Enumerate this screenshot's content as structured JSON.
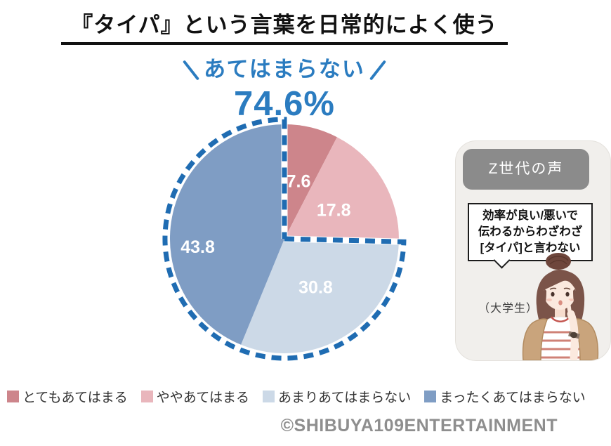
{
  "title": "『タイパ』という言葉を日常的によく使う",
  "highlight": {
    "label": "あてはまらない",
    "value": "74.6%"
  },
  "chart_data": {
    "type": "pie",
    "title": "『タイパ』という言葉を日常的によく使う",
    "start_angle_deg": 0,
    "direction": "clockwise",
    "unit": "%",
    "slices": [
      {
        "label": "とてもあてはまる",
        "value": 7.6,
        "color": "#cd858b"
      },
      {
        "label": "ややあてはまる",
        "value": 17.8,
        "color": "#e9b6bc"
      },
      {
        "label": "あまりあてはまらない",
        "value": 30.8,
        "color": "#ccd9e7"
      },
      {
        "label": "まったくあてはまらない",
        "value": 43.8,
        "color": "#7f9dc4"
      }
    ],
    "highlight_group": {
      "label": "あてはまらない",
      "value": 74.6,
      "covers": [
        "あまりあてはまらない",
        "まったくあてはまらない"
      ],
      "outline_color": "#1f6cb2",
      "outline_style": "dashed"
    },
    "legend_position": "bottom"
  },
  "voice_panel": {
    "header": "Z世代の声",
    "quote_lines": [
      "効率が良い/悪いで",
      "伝わるからわざわざ",
      "[タイパ]と言わない"
    ],
    "attribution": "（大学生）"
  },
  "copyright": "©SHIBUYA109ENTERTAINMENT",
  "colors": {
    "accent_blue": "#2b7cc0",
    "dash_blue": "#1f6cb2",
    "badge_gray": "#8b8b8b",
    "panel_bg": "#f1efec",
    "copyright_gray": "#8e8e8e",
    "title_black": "#111111"
  }
}
